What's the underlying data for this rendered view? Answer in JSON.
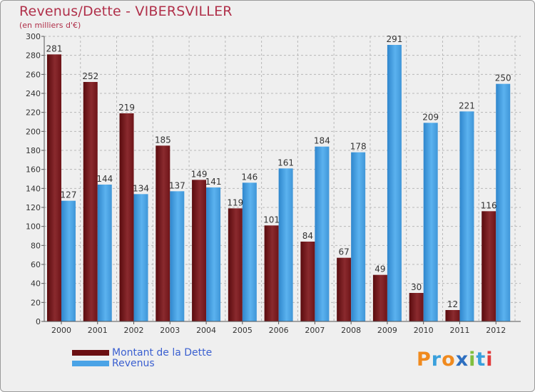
{
  "title": "Revenus/Dette - VIBERSVILLER",
  "subtitle": "(en milliers d'€)",
  "colors": {
    "dette": "#7a1a1e",
    "revenus": "#4aa3e6",
    "grid": "#b8b8b8",
    "text": "#333333",
    "title": "#b0304a"
  },
  "legend": [
    {
      "label": "Montant de la Dette",
      "color": "#6b0f12"
    },
    {
      "label": "Revenus",
      "color": "#4aa3e6"
    }
  ],
  "logo": {
    "text": "Proxiti",
    "letters": [
      "P",
      "r",
      "o",
      "x",
      "i",
      "t",
      "i"
    ],
    "colors": [
      "#f08a1e",
      "#3aa0dc",
      "#f08a1e",
      "#2d6fc0",
      "#7fbf3f",
      "#3aa0dc",
      "#e23a3a"
    ]
  },
  "chart_data": {
    "type": "bar",
    "title": "Revenus/Dette - VIBERSVILLER",
    "ylabel": "(en milliers d'€)",
    "xlabel": "",
    "categories": [
      "2000",
      "2001",
      "2002",
      "2003",
      "2004",
      "2005",
      "2006",
      "2007",
      "2008",
      "2009",
      "2010",
      "2011",
      "2012"
    ],
    "series": [
      {
        "name": "Montant de la Dette",
        "values": [
          281,
          252,
          219,
          185,
          149,
          119,
          101,
          84,
          67,
          49,
          30,
          12,
          116
        ]
      },
      {
        "name": "Revenus",
        "values": [
          127,
          144,
          134,
          137,
          141,
          146,
          161,
          184,
          178,
          291,
          209,
          221,
          250
        ]
      }
    ],
    "ylim": [
      0,
      300
    ],
    "yticks": [
      0,
      20,
      40,
      60,
      80,
      100,
      120,
      140,
      160,
      180,
      200,
      220,
      240,
      260,
      280,
      300
    ],
    "grid": true,
    "legend": "bottom-left"
  }
}
